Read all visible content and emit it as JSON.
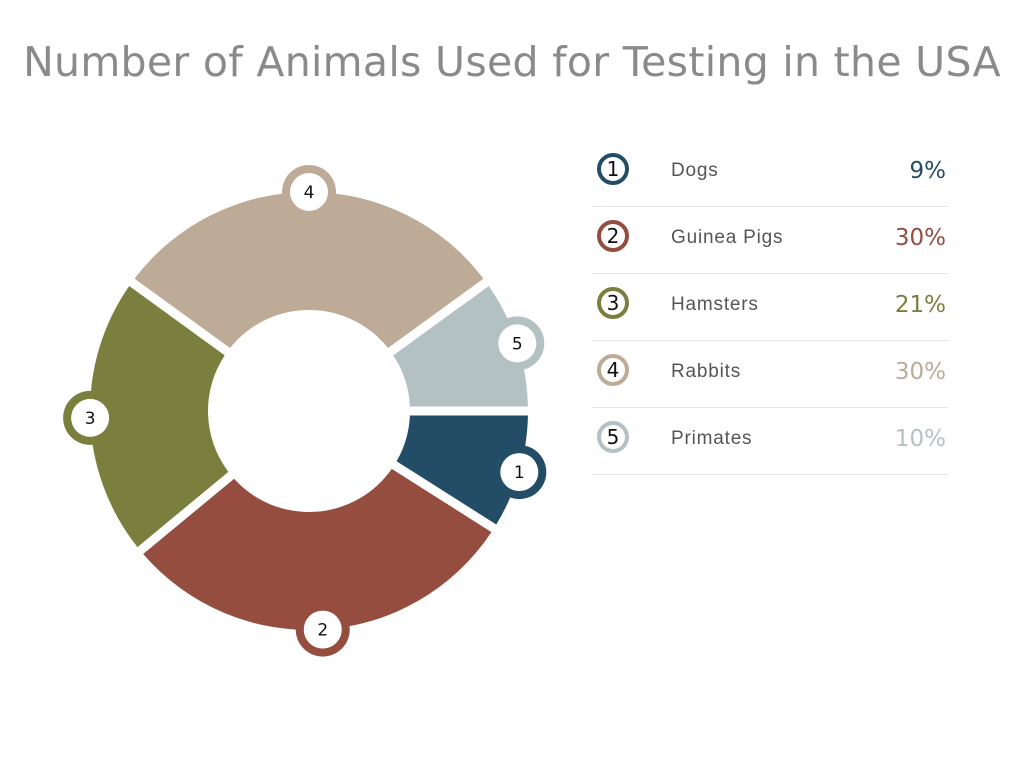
{
  "title": "Number of Animals Used for Testing in the USA",
  "chart_data": {
    "type": "pie",
    "title": "Number of Animals Used for Testing in the USA",
    "slices": [
      {
        "index": "1",
        "label": "Dogs",
        "value": 9,
        "display": "9%",
        "color": "#234d66"
      },
      {
        "index": "2",
        "label": "Guinea Pigs",
        "value": 30,
        "display": "30%",
        "color": "#954d3f"
      },
      {
        "index": "3",
        "label": "Hamsters",
        "value": 21,
        "display": "21%",
        "color": "#7b7f3e"
      },
      {
        "index": "4",
        "label": "Rabbits",
        "value": 30,
        "display": "30%",
        "color": "#bdab98"
      },
      {
        "index": "5",
        "label": "Primates",
        "value": 10,
        "display": "10%",
        "color": "#b4c1c3"
      }
    ],
    "legend_position": "right"
  }
}
